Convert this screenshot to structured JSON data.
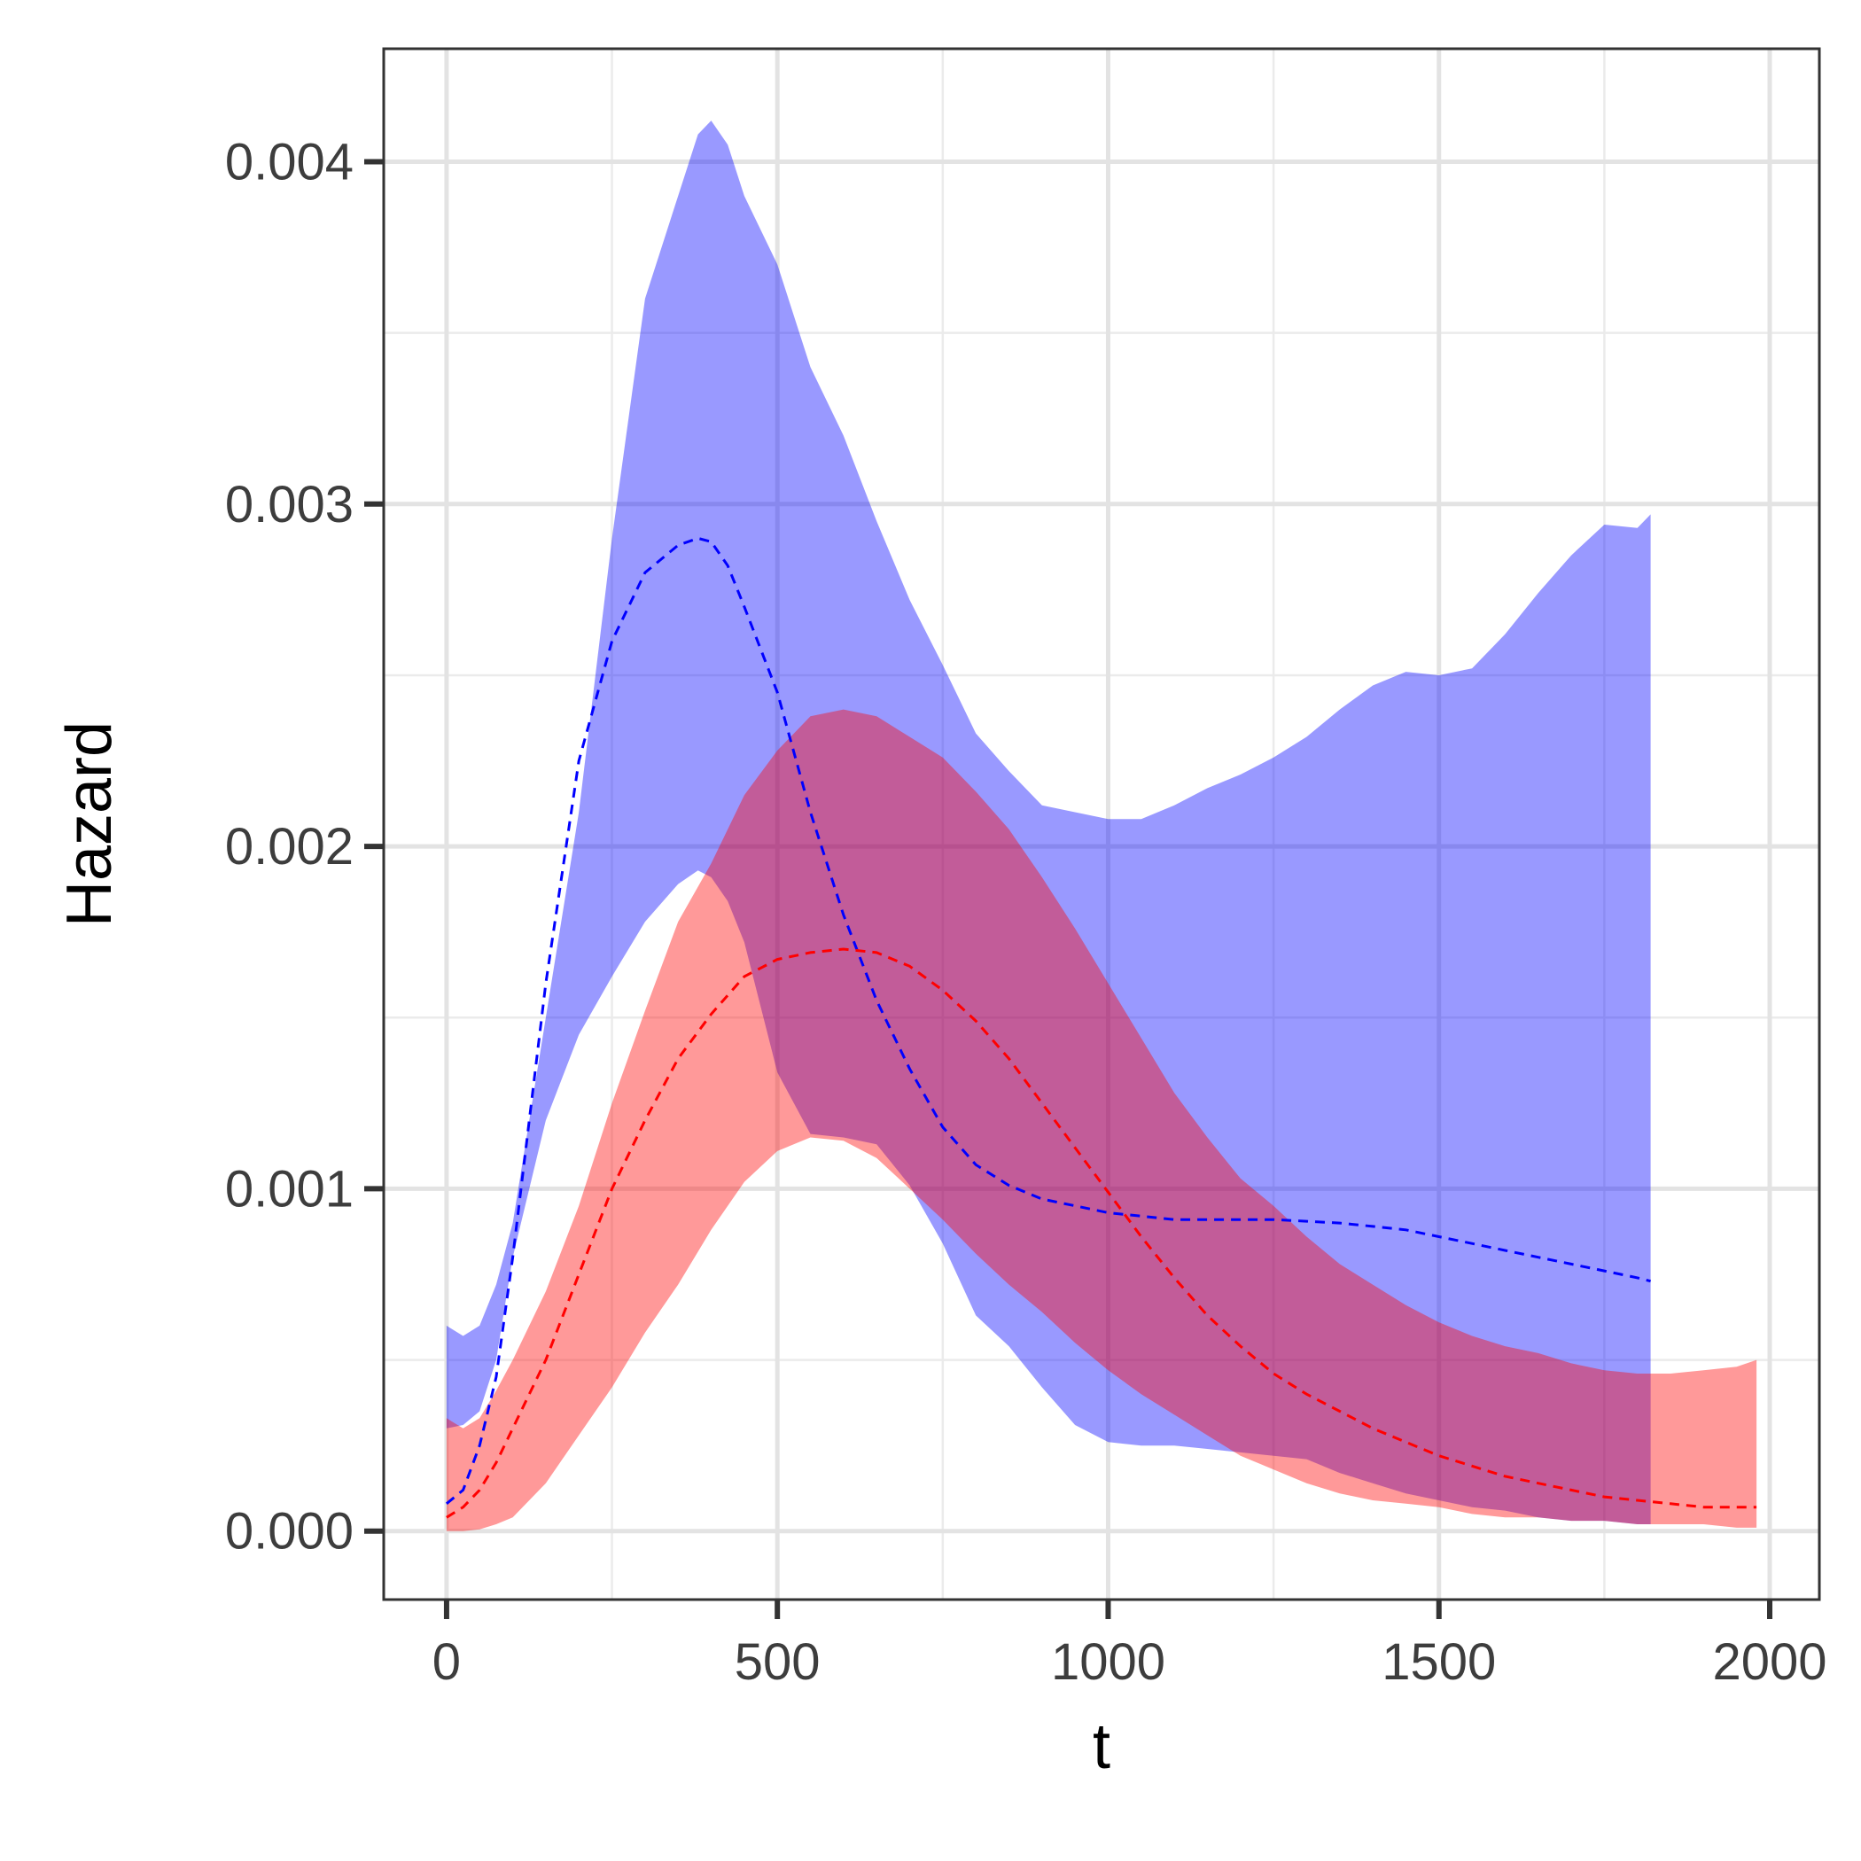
{
  "chart_data": {
    "type": "area",
    "xlabel": "t",
    "ylabel": "Hazard",
    "xlim": [
      -95,
      2075
    ],
    "ylim": [
      -0.0002,
      0.00433
    ],
    "x_ticks": [
      0,
      500,
      1000,
      1500,
      2000
    ],
    "x_tick_labels": [
      "0",
      "500",
      "1000",
      "1500",
      "2000"
    ],
    "y_ticks": [
      0,
      0.001,
      0.002,
      0.003,
      0.004
    ],
    "y_tick_labels": [
      "0.000",
      "0.001",
      "0.002",
      "0.003",
      "0.004"
    ],
    "x_minor": [
      250,
      750,
      1250,
      1750
    ],
    "y_minor": [
      0.0005,
      0.0015,
      0.0025,
      0.0035
    ],
    "grid": true,
    "legend": "none",
    "series": [
      {
        "color": "#0000ff",
        "band_color": "#0000ff",
        "x": [
          0,
          25,
          50,
          75,
          100,
          150,
          200,
          250,
          300,
          350,
          380,
          400,
          425,
          450,
          500,
          550,
          600,
          650,
          700,
          750,
          800,
          850,
          900,
          950,
          1000,
          1050,
          1100,
          1150,
          1200,
          1250,
          1300,
          1350,
          1400,
          1450,
          1500,
          1550,
          1600,
          1650,
          1700,
          1750,
          1800,
          1820
        ],
        "lower": [
          0.0003,
          0.00031,
          0.00035,
          0.0005,
          0.0008,
          0.0012,
          0.00145,
          0.00162,
          0.00178,
          0.00189,
          0.00193,
          0.00191,
          0.00184,
          0.00172,
          0.00134,
          0.00116,
          0.00115,
          0.00113,
          0.00101,
          0.00084,
          0.00063,
          0.00054,
          0.00042,
          0.00031,
          0.00026,
          0.00025,
          0.00025,
          0.00024,
          0.00023,
          0.00022,
          0.00021,
          0.00017,
          0.00014,
          0.00011,
          9e-05,
          7e-05,
          6e-05,
          4e-05,
          3e-05,
          3e-05,
          2e-05,
          2e-05
        ],
        "upper": [
          0.0006,
          0.00057,
          0.0006,
          0.00072,
          0.0009,
          0.0015,
          0.0021,
          0.0029,
          0.0036,
          0.0039,
          0.00408,
          0.00412,
          0.00405,
          0.0039,
          0.0037,
          0.0034,
          0.0032,
          0.00295,
          0.00272,
          0.00253,
          0.00233,
          0.00222,
          0.00212,
          0.0021,
          0.00208,
          0.00208,
          0.00212,
          0.00217,
          0.00221,
          0.00226,
          0.00232,
          0.0024,
          0.00247,
          0.00251,
          0.0025,
          0.00252,
          0.00262,
          0.00274,
          0.00285,
          0.00294,
          0.00293,
          0.00297
        ],
        "mean": [
          8e-05,
          0.00012,
          0.00025,
          0.00045,
          0.0008,
          0.0016,
          0.00225,
          0.0026,
          0.0028,
          0.00288,
          0.0029,
          0.00289,
          0.00282,
          0.0027,
          0.00245,
          0.0021,
          0.0018,
          0.00155,
          0.00135,
          0.00118,
          0.00107,
          0.00101,
          0.00097,
          0.00095,
          0.00093,
          0.00092,
          0.00091,
          0.00091,
          0.00091,
          0.00091,
          0.000905,
          0.0009,
          0.00089,
          0.00088,
          0.00086,
          0.00084,
          0.00082,
          0.0008,
          0.00078,
          0.00076,
          0.00074,
          0.00073
        ]
      },
      {
        "color": "#ff0000",
        "band_color": "#ff0000",
        "x": [
          0,
          25,
          50,
          75,
          100,
          150,
          200,
          250,
          300,
          350,
          400,
          450,
          500,
          550,
          600,
          650,
          700,
          750,
          800,
          850,
          900,
          950,
          1000,
          1050,
          1100,
          1150,
          1200,
          1250,
          1300,
          1350,
          1400,
          1450,
          1500,
          1550,
          1600,
          1650,
          1700,
          1750,
          1800,
          1850,
          1900,
          1950,
          1980
        ],
        "lower": [
          0,
          0,
          5e-06,
          2e-05,
          4e-05,
          0.00014,
          0.00028,
          0.00042,
          0.00058,
          0.00072,
          0.00088,
          0.00102,
          0.00111,
          0.00115,
          0.00114,
          0.00109,
          0.001,
          0.00091,
          0.00081,
          0.00072,
          0.00064,
          0.00055,
          0.00047,
          0.0004,
          0.00034,
          0.00028,
          0.00022,
          0.00018,
          0.00014,
          0.00011,
          9e-05,
          8e-05,
          7e-05,
          5e-05,
          4e-05,
          4e-05,
          3e-05,
          3e-05,
          2e-05,
          2e-05,
          2e-05,
          1e-05,
          1e-05
        ],
        "upper": [
          0.00033,
          0.0003,
          0.00033,
          0.00041,
          0.0005,
          0.0007,
          0.00095,
          0.00125,
          0.00152,
          0.00178,
          0.00195,
          0.00215,
          0.00228,
          0.00238,
          0.0024,
          0.00238,
          0.00232,
          0.00226,
          0.00216,
          0.00205,
          0.00191,
          0.00176,
          0.0016,
          0.00144,
          0.00128,
          0.00115,
          0.00103,
          0.00095,
          0.00086,
          0.00078,
          0.00072,
          0.00066,
          0.00061,
          0.00057,
          0.00054,
          0.00052,
          0.00049,
          0.00047,
          0.00046,
          0.00046,
          0.00047,
          0.00048,
          0.0005
        ]
      },
      {
        "color": "#ff0000",
        "band_color": "#ff0000",
        "x": [
          0,
          25,
          50,
          75,
          100,
          150,
          200,
          250,
          300,
          350,
          400,
          450,
          500,
          550,
          600,
          650,
          700,
          750,
          800,
          850,
          900,
          950,
          1000,
          1050,
          1100,
          1150,
          1200,
          1250,
          1300,
          1350,
          1400,
          1450,
          1500,
          1550,
          1600,
          1650,
          1700,
          1750,
          1800,
          1850,
          1900,
          1950,
          1980
        ],
        "mean": [
          4e-05,
          7e-05,
          0.00012,
          0.0002,
          0.0003,
          0.0005,
          0.00075,
          0.001,
          0.0012,
          0.00138,
          0.00151,
          0.00162,
          0.00167,
          0.00169,
          0.0017,
          0.00169,
          0.00165,
          0.00158,
          0.00149,
          0.00138,
          0.00125,
          0.00112,
          0.00099,
          0.00086,
          0.00074,
          0.00063,
          0.00054,
          0.00046,
          0.0004,
          0.00035,
          0.0003,
          0.00026,
          0.00022,
          0.00019,
          0.00016,
          0.00014,
          0.00012,
          0.0001,
          9e-05,
          8e-05,
          7e-05,
          7e-05,
          7e-05
        ]
      }
    ]
  }
}
